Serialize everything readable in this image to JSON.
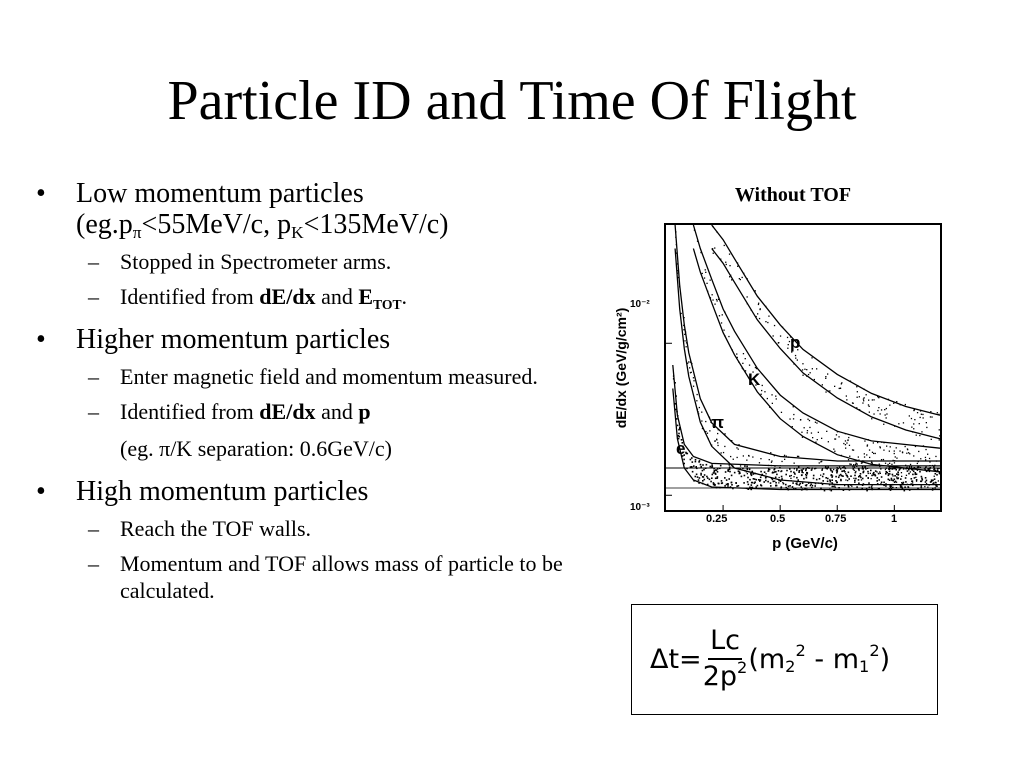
{
  "slide": {
    "title": "Particle ID and Time Of Flight",
    "bullets": [
      {
        "line1": "Low momentum particles",
        "line2_pre": "(eg.p",
        "line2_sub1": "π",
        "line2_mid": "<55MeV/c, p",
        "line2_sub2": "K",
        "line2_post": "<135MeV/c)",
        "subs": [
          {
            "text": "Stopped in Spectrometer arms."
          },
          {
            "pre": "Identified from ",
            "bold1": "dE/dx",
            "mid": " and ",
            "bold2_main": "E",
            "bold2_sub": "TOT",
            "post": "."
          }
        ]
      },
      {
        "line1": "Higher momentum particles",
        "subs": [
          {
            "text": "Enter magnetic field and momentum measured."
          },
          {
            "pre": "Identified from ",
            "bold1": "dE/dx",
            "mid": " and ",
            "bold2": "p"
          }
        ],
        "extra": "(eg. π/K separation: 0.6GeV/c)"
      },
      {
        "line1": "High momentum particles",
        "subs": [
          {
            "text": "Reach the TOF walls."
          },
          {
            "text": "Momentum and TOF allows mass of particle to be calculated."
          }
        ]
      }
    ]
  },
  "figure": {
    "title": "Without TOF",
    "ylabel": "dE/dx (GeV/g/cm²)",
    "xlabel": "p (GeV/c)",
    "y_tick_labels": [
      "10⁻²",
      "10⁻³"
    ],
    "x_tick_labels": [
      "0.25",
      "0.5",
      "0.75",
      "1"
    ],
    "curve_labels": [
      "p",
      "K",
      "π",
      "e"
    ]
  },
  "chart_data": {
    "type": "scatter",
    "title": "Without TOF",
    "xlabel": "p (GeV/c)",
    "ylabel": "dE/dx (GeV/g/cm²)",
    "xlim": [
      0,
      1.2
    ],
    "y_scale": "log",
    "ylim": [
      0.0008,
      0.06
    ],
    "series": [
      {
        "name": "p",
        "x": [
          0.2,
          0.25,
          0.3,
          0.4,
          0.5,
          0.6,
          0.75,
          0.9,
          1.05,
          1.2
        ],
        "y": [
          0.05,
          0.04,
          0.03,
          0.017,
          0.011,
          0.0076,
          0.0052,
          0.0039,
          0.0032,
          0.0028
        ]
      },
      {
        "name": "K",
        "x": [
          0.12,
          0.15,
          0.2,
          0.25,
          0.3,
          0.4,
          0.5,
          0.6,
          0.75,
          0.9,
          1.2
        ],
        "y": [
          0.05,
          0.035,
          0.022,
          0.014,
          0.01,
          0.0057,
          0.0038,
          0.0029,
          0.0022,
          0.0019,
          0.0017
        ]
      },
      {
        "name": "π",
        "x": [
          0.04,
          0.06,
          0.08,
          0.1,
          0.15,
          0.2,
          0.3,
          0.5,
          0.75,
          1.2
        ],
        "y": [
          0.05,
          0.02,
          0.011,
          0.0072,
          0.0036,
          0.0025,
          0.0018,
          0.0015,
          0.0014,
          0.0014
        ]
      },
      {
        "name": "e",
        "x": [
          0.03,
          0.05,
          0.08,
          0.12,
          0.2,
          0.5,
          1.2
        ],
        "y": [
          0.006,
          0.0028,
          0.0018,
          0.0015,
          0.00135,
          0.0013,
          0.0013
        ]
      }
    ]
  },
  "formula": {
    "lhs": "Δt=",
    "numerator": "Lc",
    "denominator": "2p",
    "den_exp": "2",
    "open": "(m",
    "m2_sub": "2",
    "m2_exp": "2",
    "minus": " - m",
    "m1_sub": "1",
    "m1_exp": "2",
    "close": ")"
  }
}
